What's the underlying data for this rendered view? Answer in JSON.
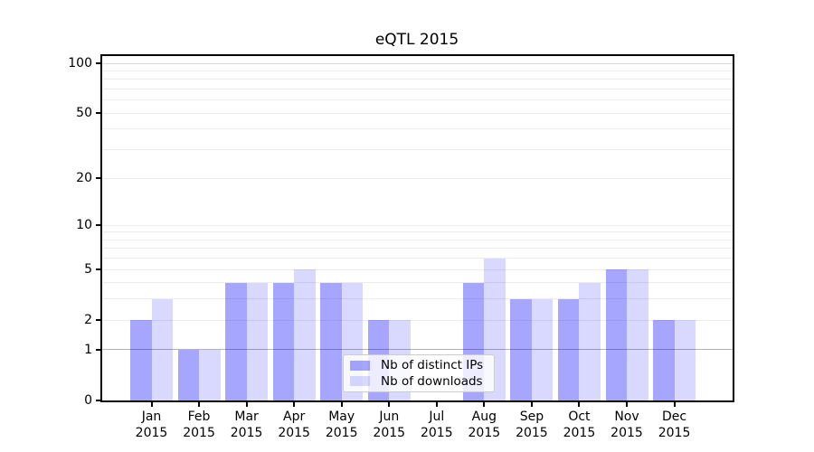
{
  "title": "eQTL 2015",
  "chart_data": {
    "type": "bar",
    "title": "eQTL 2015",
    "categories": [
      "Jan",
      "Feb",
      "Mar",
      "Apr",
      "May",
      "Jun",
      "Jul",
      "Aug",
      "Sep",
      "Oct",
      "Nov",
      "Dec"
    ],
    "year": "2015",
    "series": [
      {
        "name": "Nb of distinct IPs",
        "color": "rgba(0,0,255,0.35)",
        "values": [
          2,
          1,
          4,
          4,
          4,
          2,
          0,
          4,
          3,
          3,
          5,
          2
        ]
      },
      {
        "name": "Nb of downloads",
        "color": "rgba(0,0,255,0.15)",
        "values": [
          3,
          1,
          4,
          5,
          4,
          2,
          0,
          6,
          3,
          4,
          5,
          2
        ]
      }
    ],
    "yscale": "log1p",
    "ylim": [
      0,
      115
    ],
    "ytick_values": [
      0,
      1,
      2,
      5,
      10,
      20,
      50,
      100
    ],
    "ytick_labels": [
      "0",
      "1",
      "2",
      "5",
      "10",
      "20",
      "50",
      "100"
    ],
    "minor_grid_values": [
      2,
      3,
      4,
      5,
      6,
      7,
      8,
      9,
      10,
      20,
      30,
      40,
      50,
      60,
      70,
      80,
      90
    ],
    "grid_colors": {
      "minor": "#ececec",
      "major_100": "#d9d9d9",
      "major_1": "#b3b3b3"
    },
    "grid": true,
    "legend_position": "lower center"
  }
}
